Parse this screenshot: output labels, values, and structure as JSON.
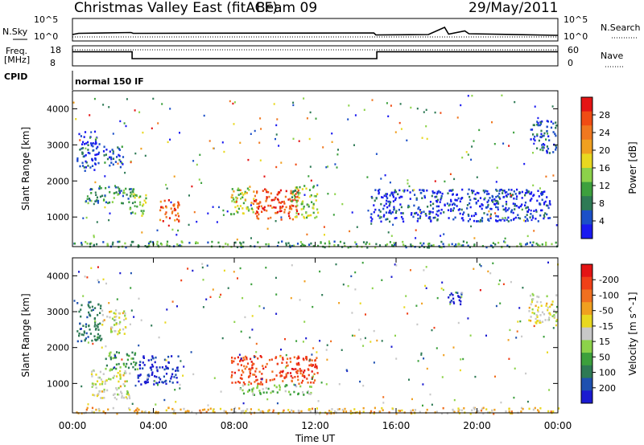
{
  "header": {
    "station": "Christmas Valley East (fitACF)",
    "beam": "Beam 09",
    "date": "29/May/2011"
  },
  "left_labels": {
    "nsky": "N.Sky",
    "freq": "Freq.",
    "freq_unit": "[MHz]",
    "cpid": "CPID"
  },
  "right_labels": {
    "nsearch": "N.Search",
    "nave": "Nave"
  },
  "noise_axis": {
    "ticks": [
      "10^5",
      "10^0"
    ]
  },
  "freq_axis": {
    "ticks": [
      "18",
      "8"
    ]
  },
  "nave_axis": {
    "ticks": [
      "60",
      "0"
    ]
  },
  "cpid_text": "normal 150 IF",
  "x_axis": {
    "label": "Time UT",
    "ticks": [
      "00:00",
      "04:00",
      "08:00",
      "12:00",
      "16:00",
      "20:00",
      "00:00"
    ]
  },
  "y_axis": {
    "label": "Slant Range [km]",
    "ticks": [
      "1000",
      "2000",
      "3000",
      "4000"
    ]
  },
  "power_scale": {
    "label": "Power [dB]",
    "ticks": [
      "4",
      "8",
      "12",
      "16",
      "20",
      "24",
      "28"
    ],
    "colors": [
      "#1a1af0",
      "#1c50c8",
      "#2e7a55",
      "#3da03d",
      "#8cd24a",
      "#e8d820",
      "#f0a020",
      "#f07820",
      "#f04c14",
      "#e41414"
    ]
  },
  "velocity_scale": {
    "label": "Velocity [m s^-1]",
    "ticks": [
      "200",
      "100",
      "50",
      "15",
      "-15",
      "-50",
      "-100",
      "-200"
    ],
    "colors": [
      "#1a1ad0",
      "#1e50b0",
      "#2e7a55",
      "#3ca03c",
      "#8cd24a",
      "#c8c8c8",
      "#e8d820",
      "#f0a020",
      "#f07020",
      "#f04018",
      "#e41414"
    ]
  },
  "chart_data": [
    {
      "type": "line",
      "title": "N.Sky / N.Search",
      "x_unit": "hours UT",
      "xlim": [
        0,
        24
      ],
      "ylim_log10": [
        0,
        5
      ],
      "series": [
        {
          "x": [
            0,
            0.3,
            2.9,
            3.0,
            14.9,
            15.0,
            17.6,
            18.4,
            18.6,
            19.4,
            19.6,
            24
          ],
          "y_log10": [
            1.4,
            1.7,
            1.9,
            1.7,
            1.8,
            1.3,
            1.4,
            3.2,
            1.5,
            2.3,
            1.6,
            1.2
          ]
        }
      ]
    },
    {
      "type": "line",
      "title": "Freq. / Nave",
      "x_unit": "hours UT",
      "xlim": [
        0,
        24
      ],
      "ylim": [
        8,
        18
      ],
      "series": [
        {
          "x": [
            0,
            2.95,
            2.95,
            15.05,
            15.05,
            24
          ],
          "y": [
            15.2,
            15.2,
            11.5,
            11.5,
            15.2,
            15.2
          ]
        }
      ]
    },
    {
      "type": "heatmap",
      "title": "Power [dB]",
      "x_unit": "hours UT",
      "y_unit": "km",
      "xlim": [
        0,
        24
      ],
      "ylim": [
        180,
        4500
      ],
      "regions": [
        {
          "x": [
            0.2,
            1.3
          ],
          "y": [
            2300,
            3400
          ],
          "value": 4
        },
        {
          "x": [
            0.6,
            3.0
          ],
          "y": [
            1400,
            1900
          ],
          "value": 10
        },
        {
          "x": [
            1.5,
            2.5
          ],
          "y": [
            2400,
            3000
          ],
          "value": 6
        },
        {
          "x": [
            2.8,
            3.6
          ],
          "y": [
            1050,
            1700
          ],
          "value": 14
        },
        {
          "x": [
            4.2,
            5.3
          ],
          "y": [
            900,
            1500
          ],
          "value": 24
        },
        {
          "x": [
            7.8,
            9.0
          ],
          "y": [
            1100,
            1900
          ],
          "value": 16
        },
        {
          "x": [
            8.9,
            11.2
          ],
          "y": [
            950,
            1800
          ],
          "value": 27
        },
        {
          "x": [
            10.8,
            12.1
          ],
          "y": [
            1000,
            1900
          ],
          "value": 14
        },
        {
          "x": [
            14.7,
            23.6
          ],
          "y": [
            900,
            1800
          ],
          "value": 4
        },
        {
          "x": [
            22.6,
            23.9
          ],
          "y": [
            2800,
            3700
          ],
          "value": 6
        },
        {
          "x": [
            0,
            24
          ],
          "y": [
            180,
            350
          ],
          "value": 10
        }
      ]
    },
    {
      "type": "heatmap",
      "title": "Velocity [m s^-1]",
      "x_unit": "hours UT",
      "y_unit": "km",
      "xlim": [
        0,
        24
      ],
      "ylim": [
        180,
        4500
      ],
      "regions": [
        {
          "x": [
            0.2,
            1.4
          ],
          "y": [
            2200,
            3300
          ],
          "value": 120
        },
        {
          "x": [
            1.4,
            2.6
          ],
          "y": [
            2400,
            3100
          ],
          "value": 0
        },
        {
          "x": [
            0.9,
            2.8
          ],
          "y": [
            600,
            1400
          ],
          "value": 0
        },
        {
          "x": [
            1.6,
            3.2
          ],
          "y": [
            1400,
            1900
          ],
          "value": 60
        },
        {
          "x": [
            3.2,
            5.2
          ],
          "y": [
            1000,
            1800
          ],
          "value": 210
        },
        {
          "x": [
            7.8,
            12.1
          ],
          "y": [
            1000,
            1800
          ],
          "value": -170
        },
        {
          "x": [
            8.2,
            11.8
          ],
          "y": [
            700,
            1000
          ],
          "value": 30
        },
        {
          "x": [
            18.5,
            19.3
          ],
          "y": [
            3200,
            3600
          ],
          "value": 210
        },
        {
          "x": [
            22.5,
            23.9
          ],
          "y": [
            2700,
            3500
          ],
          "value": 0
        },
        {
          "x": [
            0,
            24
          ],
          "y": [
            180,
            350
          ],
          "value": -40
        }
      ]
    }
  ]
}
